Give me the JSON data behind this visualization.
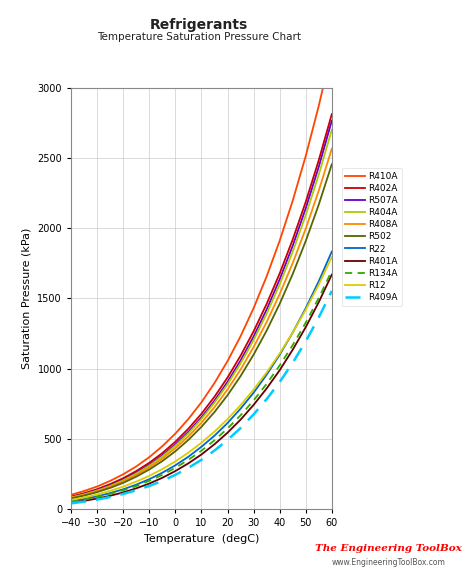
{
  "title": "Refrigerants",
  "subtitle": "Temperature Saturation Pressure Chart",
  "xlabel": "Temperature  (degC)",
  "ylabel": "Saturation Pressure (kPa)",
  "xlim": [
    -40,
    60
  ],
  "ylim": [
    0,
    3000
  ],
  "xticks": [
    -40,
    -30,
    -20,
    -10,
    0,
    10,
    20,
    30,
    40,
    50,
    60
  ],
  "yticks": [
    0,
    500,
    1000,
    1500,
    2000,
    2500,
    3000
  ],
  "temperatures": [
    -40,
    -35,
    -30,
    -25,
    -20,
    -15,
    -10,
    -5,
    0,
    5,
    10,
    15,
    20,
    25,
    30,
    35,
    40,
    45,
    50,
    55,
    60
  ],
  "refrigerants": {
    "R410A": {
      "color": "#FF4500",
      "linestyle": "-",
      "linewidth": 1.3,
      "pressures": [
        101,
        128,
        160,
        200,
        247,
        303,
        369,
        447,
        537,
        641,
        760,
        897,
        1053,
        1230,
        1430,
        1656,
        1910,
        2195,
        2514,
        2871,
        3269
      ]
    },
    "R402A": {
      "color": "#CC0000",
      "linestyle": "-",
      "linewidth": 1.3,
      "pressures": [
        88,
        112,
        141,
        177,
        219,
        270,
        329,
        398,
        479,
        572,
        678,
        799,
        936,
        1091,
        1265,
        1460,
        1677,
        1919,
        2187,
        2484,
        2812
      ]
    },
    "R507A": {
      "color": "#6600CC",
      "linestyle": "-",
      "linewidth": 1.3,
      "pressures": [
        84,
        107,
        134,
        168,
        209,
        258,
        315,
        382,
        460,
        550,
        653,
        771,
        905,
        1057,
        1228,
        1420,
        1635,
        1874,
        2141,
        2437,
        2765
      ]
    },
    "R404A": {
      "color": "#AACC00",
      "linestyle": "-",
      "linewidth": 1.3,
      "pressures": [
        82,
        104,
        131,
        164,
        204,
        252,
        308,
        374,
        451,
        539,
        641,
        757,
        888,
        1036,
        1203,
        1390,
        1599,
        1832,
        2092,
        2381,
        2701
      ]
    },
    "R408A": {
      "color": "#FF8800",
      "linestyle": "-",
      "linewidth": 1.3,
      "pressures": [
        79,
        100,
        126,
        158,
        196,
        242,
        296,
        359,
        433,
        517,
        614,
        725,
        851,
        993,
        1153,
        1331,
        1530,
        1751,
        1996,
        2267,
        2566
      ]
    },
    "R502": {
      "color": "#556600",
      "linestyle": "-",
      "linewidth": 1.3,
      "pressures": [
        75,
        95,
        120,
        150,
        186,
        230,
        281,
        341,
        411,
        492,
        585,
        690,
        810,
        946,
        1099,
        1270,
        1461,
        1673,
        1908,
        2168,
        2455
      ]
    },
    "R22": {
      "color": "#0066CC",
      "linestyle": "-",
      "linewidth": 1.3,
      "pressures": [
        55,
        71,
        90,
        113,
        140,
        173,
        212,
        258,
        311,
        372,
        443,
        522,
        612,
        714,
        828,
        956,
        1098,
        1256,
        1430,
        1622,
        1833
      ]
    },
    "R401A": {
      "color": "#660000",
      "linestyle": "-",
      "linewidth": 1.3,
      "pressures": [
        45,
        58,
        74,
        94,
        118,
        147,
        181,
        222,
        270,
        325,
        388,
        461,
        543,
        636,
        741,
        858,
        988,
        1134,
        1295,
        1473,
        1669
      ]
    },
    "R134A": {
      "color": "#33AA00",
      "linestyle": "--",
      "linewidth": 1.3,
      "dashes": [
        4,
        3
      ],
      "pressures": [
        51,
        66,
        85,
        108,
        133,
        163,
        201,
        243,
        293,
        350,
        415,
        489,
        573,
        667,
        773,
        891,
        1022,
        1167,
        1327,
        1503,
        1696
      ]
    },
    "R12": {
      "color": "#DDCC00",
      "linestyle": "-",
      "linewidth": 1.3,
      "pressures": [
        64,
        82,
        103,
        129,
        159,
        195,
        236,
        284,
        339,
        401,
        472,
        551,
        640,
        739,
        850,
        972,
        1107,
        1256,
        1419,
        1598,
        1794
      ]
    },
    "R409A": {
      "color": "#00CCFF",
      "linestyle": "--",
      "linewidth": 1.8,
      "dashes": [
        6,
        4
      ],
      "pressures": [
        40,
        52,
        67,
        85,
        107,
        133,
        164,
        200,
        243,
        293,
        350,
        416,
        491,
        576,
        673,
        782,
        904,
        1041,
        1194,
        1364,
        1553
      ]
    }
  },
  "legend_order": [
    "R410A",
    "R402A",
    "R507A",
    "R404A",
    "R408A",
    "R502",
    "R22",
    "R401A",
    "R134A",
    "R12",
    "R409A"
  ],
  "watermark_text": "The Engineering ToolBox",
  "watermark_url": "www.EngineeringToolBox.com",
  "background_color": "#FFFFFF",
  "grid_color": "#CCCCCC",
  "figsize": [
    4.74,
    5.85
  ],
  "dpi": 100
}
